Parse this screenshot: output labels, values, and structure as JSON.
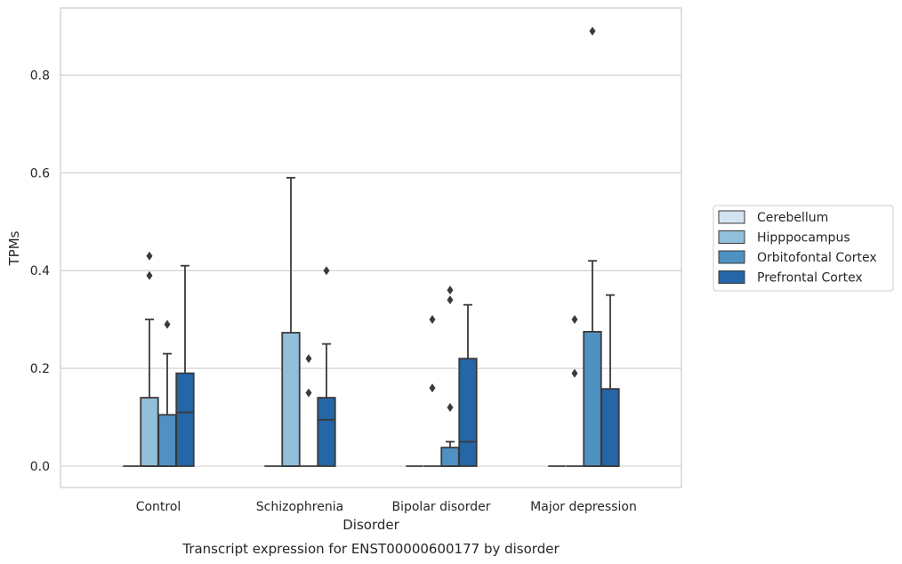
{
  "chart_data": {
    "type": "box",
    "title": "",
    "caption": "Transcript expression for ENST00000600177 by disorder",
    "xlabel": "Disorder",
    "ylabel": "TPMs",
    "ylim": [
      -0.043,
      0.935
    ],
    "yticks": [
      0.0,
      0.2,
      0.4,
      0.6,
      0.8
    ],
    "ytick_labels": [
      "0.0",
      "0.2",
      "0.4",
      "0.6",
      "0.8"
    ],
    "grid": "horizontal",
    "legend_position": "right",
    "categories": [
      "Control",
      "Schizophrenia",
      "Bipolar disorder",
      "Major depression"
    ],
    "series": [
      {
        "name": "Cerebellum",
        "color": "#d4e3f2",
        "boxes": [
          {
            "q1": 0,
            "median": 0,
            "q3": 0,
            "whisker_low": 0,
            "whisker_high": 0,
            "outliers": []
          },
          {
            "q1": 0,
            "median": 0,
            "q3": 0,
            "whisker_low": 0,
            "whisker_high": 0,
            "outliers": []
          },
          {
            "q1": 0,
            "median": 0,
            "q3": 0,
            "whisker_low": 0,
            "whisker_high": 0,
            "outliers": []
          },
          {
            "q1": 0,
            "median": 0,
            "q3": 0,
            "whisker_low": 0,
            "whisker_high": 0,
            "outliers": []
          }
        ]
      },
      {
        "name": "Hipppocampus",
        "color": "#92bfd9",
        "boxes": [
          {
            "q1": 0,
            "median": 0,
            "q3": 0.14,
            "whisker_low": 0,
            "whisker_high": 0.3,
            "outliers": [
              0.39,
              0.43
            ]
          },
          {
            "q1": 0,
            "median": 0,
            "q3": 0.273,
            "whisker_low": 0,
            "whisker_high": 0.59,
            "outliers": []
          },
          {
            "q1": 0,
            "median": 0,
            "q3": 0,
            "whisker_low": 0,
            "whisker_high": 0,
            "outliers": [
              0.16,
              0.3
            ]
          },
          {
            "q1": 0,
            "median": 0,
            "q3": 0,
            "whisker_low": 0,
            "whisker_high": 0,
            "outliers": [
              0.19,
              0.3
            ]
          }
        ]
      },
      {
        "name": "Orbitofontal Cortex",
        "color": "#4f91c2",
        "boxes": [
          {
            "q1": 0,
            "median": 0,
            "q3": 0.105,
            "whisker_low": 0,
            "whisker_high": 0.23,
            "outliers": [
              0.29
            ]
          },
          {
            "q1": 0,
            "median": 0,
            "q3": 0,
            "whisker_low": 0,
            "whisker_high": 0,
            "outliers": [
              0.15,
              0.22
            ]
          },
          {
            "q1": 0,
            "median": 0,
            "q3": 0.038,
            "whisker_low": 0,
            "whisker_high": 0.05,
            "outliers": [
              0.12,
              0.34,
              0.36
            ]
          },
          {
            "q1": 0,
            "median": 0,
            "q3": 0.275,
            "whisker_low": 0,
            "whisker_high": 0.42,
            "outliers": [
              0.89
            ]
          }
        ]
      },
      {
        "name": "Prefrontal Cortex",
        "color": "#2466a8",
        "boxes": [
          {
            "q1": 0,
            "median": 0.11,
            "q3": 0.19,
            "whisker_low": 0,
            "whisker_high": 0.41,
            "outliers": []
          },
          {
            "q1": 0,
            "median": 0.095,
            "q3": 0.14,
            "whisker_low": 0,
            "whisker_high": 0.25,
            "outliers": [
              0.4
            ]
          },
          {
            "q1": 0,
            "median": 0.05,
            "q3": 0.22,
            "whisker_low": 0,
            "whisker_high": 0.33,
            "outliers": []
          },
          {
            "q1": 0,
            "median": 0,
            "q3": 0.158,
            "whisker_low": 0,
            "whisker_high": 0.35,
            "outliers": []
          }
        ]
      }
    ]
  }
}
